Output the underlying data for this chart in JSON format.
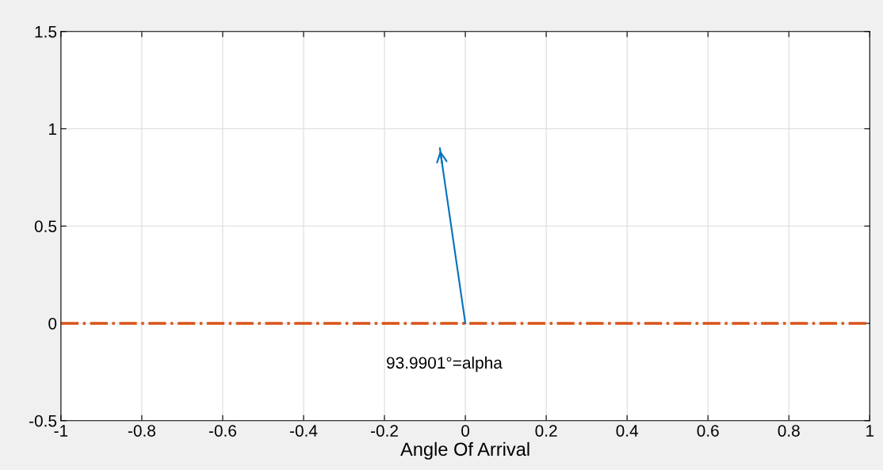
{
  "chart_data": {
    "type": "line",
    "xlabel": "Angle Of Arrival",
    "xlim": [
      -1,
      1
    ],
    "xticks": [
      -1,
      -0.8,
      -0.6,
      -0.4,
      -0.2,
      0,
      0.2,
      0.4,
      0.6,
      0.8,
      1
    ],
    "ylim": [
      -0.5,
      1.5
    ],
    "yticks": [
      -0.5,
      0,
      0.5,
      1,
      1.5
    ],
    "grid": true,
    "marker": "none",
    "series": [
      {
        "x": [
          0,
          -0.063
        ],
        "values": [
          0,
          0.9
        ],
        "color": "#0072bd",
        "line_style": "solid"
      }
    ],
    "ref_lines": [
      {
        "axis": "y",
        "value": 0,
        "color": "#d95319",
        "line_style": "dashdot"
      }
    ],
    "annotations": [
      "93.9901°=alpha"
    ]
  }
}
